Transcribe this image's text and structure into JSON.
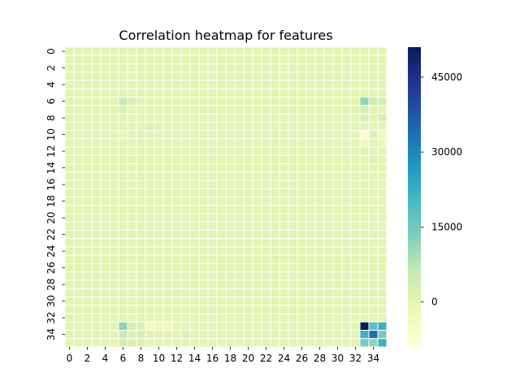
{
  "chart_data": {
    "type": "heatmap",
    "title": "Correlation heatmap for features",
    "xlabel": "",
    "ylabel": "",
    "n_rows": 36,
    "n_cols": 36,
    "x_tick_labels": [
      "0",
      "2",
      "4",
      "6",
      "8",
      "10",
      "12",
      "14",
      "16",
      "18",
      "20",
      "22",
      "24",
      "26",
      "28",
      "30",
      "32",
      "34"
    ],
    "y_tick_labels": [
      "0",
      "2",
      "4",
      "6",
      "8",
      "10",
      "12",
      "14",
      "16",
      "18",
      "20",
      "22",
      "24",
      "26",
      "28",
      "30",
      "32",
      "34"
    ],
    "colormap": "YlGnBu",
    "vmin": -9000,
    "vmax": 51000,
    "colorbar_ticks": [
      "0",
      "15000",
      "30000",
      "45000"
    ],
    "colorbar_tick_values": [
      0,
      15000,
      30000,
      45000
    ],
    "background_value": 500,
    "notable_cells": [
      {
        "row": 6,
        "col": 6,
        "value": 6000
      },
      {
        "row": 6,
        "col": 7,
        "value": 3000
      },
      {
        "row": 7,
        "col": 6,
        "value": 3000
      },
      {
        "row": 6,
        "col": 33,
        "value": 12000
      },
      {
        "row": 6,
        "col": 34,
        "value": 5000
      },
      {
        "row": 6,
        "col": 35,
        "value": 4000
      },
      {
        "row": 7,
        "col": 33,
        "value": 3000
      },
      {
        "row": 8,
        "col": 33,
        "value": 3000
      },
      {
        "row": 8,
        "col": 35,
        "value": 3000
      },
      {
        "row": 9,
        "col": 9,
        "value": 2000
      },
      {
        "row": 10,
        "col": 6,
        "value": -1000
      },
      {
        "row": 10,
        "col": 33,
        "value": -7000
      },
      {
        "row": 10,
        "col": 34,
        "value": 2000
      },
      {
        "row": 10,
        "col": 35,
        "value": -3000
      },
      {
        "row": 11,
        "col": 33,
        "value": -3000
      },
      {
        "row": 11,
        "col": 35,
        "value": -2000
      },
      {
        "row": 12,
        "col": 33,
        "value": 2000
      },
      {
        "row": 13,
        "col": 34,
        "value": 2000
      },
      {
        "row": 33,
        "col": 6,
        "value": 12000
      },
      {
        "row": 33,
        "col": 7,
        "value": 3000
      },
      {
        "row": 33,
        "col": 8,
        "value": 2000
      },
      {
        "row": 33,
        "col": 9,
        "value": -4000
      },
      {
        "row": 33,
        "col": 10,
        "value": -2000
      },
      {
        "row": 33,
        "col": 11,
        "value": -3000
      },
      {
        "row": 33,
        "col": 33,
        "value": 51000
      },
      {
        "row": 33,
        "col": 34,
        "value": 18000
      },
      {
        "row": 33,
        "col": 35,
        "value": 22000
      },
      {
        "row": 34,
        "col": 6,
        "value": 5000
      },
      {
        "row": 34,
        "col": 7,
        "value": 2000
      },
      {
        "row": 34,
        "col": 8,
        "value": 3000
      },
      {
        "row": 34,
        "col": 13,
        "value": 2000
      },
      {
        "row": 34,
        "col": 33,
        "value": 22000
      },
      {
        "row": 34,
        "col": 34,
        "value": 34000
      },
      {
        "row": 34,
        "col": 35,
        "value": 14000
      },
      {
        "row": 35,
        "col": 6,
        "value": 4000
      },
      {
        "row": 35,
        "col": 7,
        "value": 3000
      },
      {
        "row": 35,
        "col": 8,
        "value": 2000
      },
      {
        "row": 35,
        "col": 33,
        "value": 14000
      },
      {
        "row": 35,
        "col": 34,
        "value": 12000
      },
      {
        "row": 35,
        "col": 35,
        "value": 22000
      }
    ]
  }
}
